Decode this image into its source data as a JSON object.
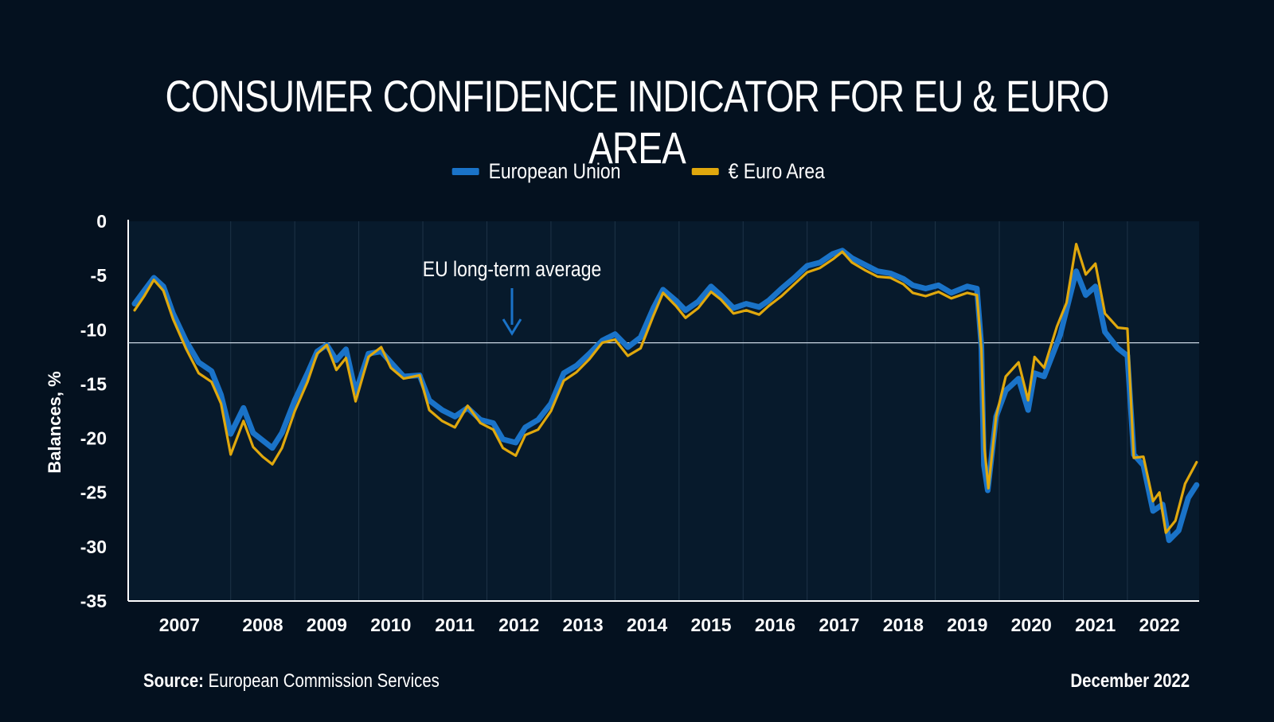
{
  "title": "CONSUMER CONFIDENCE INDICATOR FOR EU & EURO AREA",
  "footer": {
    "source_label": "Source:",
    "source_text": "European Commission Services",
    "date": "December 2022"
  },
  "colors": {
    "background": "#04111f",
    "plot_background": "#071a2c",
    "eu": "#1a73c8",
    "ea": "#e0a80d",
    "average_line": "#c9d6e3",
    "annotation_arrow": "#1a73c8"
  },
  "chart_data": {
    "type": "line",
    "ylabel": "Balances, %",
    "xlabel": "",
    "ylim": [
      -35,
      0
    ],
    "yticks": [
      0,
      -5,
      -10,
      -15,
      -20,
      -25,
      -30,
      -35
    ],
    "year_labels": [
      "2007",
      "2008",
      "2009",
      "2010",
      "2011",
      "2012",
      "2013",
      "2014",
      "2015",
      "2016",
      "2017",
      "2018",
      "2019",
      "2020",
      "2021",
      "2022"
    ],
    "legend_position": "top-center",
    "grid": "vertical-year-separators",
    "reference_line": {
      "value": -11.2,
      "label": "EU long-term average"
    },
    "series": [
      {
        "name": "European Union",
        "key": "eu",
        "points": [
          [
            2007.0,
            -7.6
          ],
          [
            2007.15,
            -6.4
          ],
          [
            2007.3,
            -5.2
          ],
          [
            2007.45,
            -6.0
          ],
          [
            2007.6,
            -8.5
          ],
          [
            2007.8,
            -11.0
          ],
          [
            2008.0,
            -13.0
          ],
          [
            2008.2,
            -13.8
          ],
          [
            2008.35,
            -16.0
          ],
          [
            2008.5,
            -19.6
          ],
          [
            2008.7,
            -17.2
          ],
          [
            2008.85,
            -19.5
          ],
          [
            2009.0,
            -20.2
          ],
          [
            2009.15,
            -20.9
          ],
          [
            2009.3,
            -19.5
          ],
          [
            2009.5,
            -16.5
          ],
          [
            2009.7,
            -14.0
          ],
          [
            2009.85,
            -12.0
          ],
          [
            2010.0,
            -11.4
          ],
          [
            2010.15,
            -12.8
          ],
          [
            2010.3,
            -11.8
          ],
          [
            2010.45,
            -15.8
          ],
          [
            2010.65,
            -12.2
          ],
          [
            2010.85,
            -12.0
          ],
          [
            2011.0,
            -13.0
          ],
          [
            2011.2,
            -14.3
          ],
          [
            2011.45,
            -14.2
          ],
          [
            2011.6,
            -16.5
          ],
          [
            2011.8,
            -17.4
          ],
          [
            2012.0,
            -18.0
          ],
          [
            2012.2,
            -17.2
          ],
          [
            2012.4,
            -18.3
          ],
          [
            2012.6,
            -18.6
          ],
          [
            2012.75,
            -20.1
          ],
          [
            2012.95,
            -20.4
          ],
          [
            2013.1,
            -19.0
          ],
          [
            2013.3,
            -18.3
          ],
          [
            2013.5,
            -16.8
          ],
          [
            2013.7,
            -14.0
          ],
          [
            2013.9,
            -13.3
          ],
          [
            2014.1,
            -12.2
          ],
          [
            2014.3,
            -11.0
          ],
          [
            2014.5,
            -10.4
          ],
          [
            2014.7,
            -11.6
          ],
          [
            2014.9,
            -10.7
          ],
          [
            2015.1,
            -8.0
          ],
          [
            2015.25,
            -6.3
          ],
          [
            2015.45,
            -7.3
          ],
          [
            2015.6,
            -8.2
          ],
          [
            2015.8,
            -7.4
          ],
          [
            2016.0,
            -6.0
          ],
          [
            2016.15,
            -6.8
          ],
          [
            2016.35,
            -8.0
          ],
          [
            2016.55,
            -7.6
          ],
          [
            2016.75,
            -7.9
          ],
          [
            2016.9,
            -7.3
          ],
          [
            2017.1,
            -6.2
          ],
          [
            2017.3,
            -5.2
          ],
          [
            2017.5,
            -4.1
          ],
          [
            2017.7,
            -3.8
          ],
          [
            2017.9,
            -3.0
          ],
          [
            2018.05,
            -2.7
          ],
          [
            2018.2,
            -3.4
          ],
          [
            2018.4,
            -4.0
          ],
          [
            2018.6,
            -4.6
          ],
          [
            2018.8,
            -4.8
          ],
          [
            2019.0,
            -5.3
          ],
          [
            2019.15,
            -5.9
          ],
          [
            2019.35,
            -6.2
          ],
          [
            2019.55,
            -5.9
          ],
          [
            2019.75,
            -6.6
          ],
          [
            2020.0,
            -6.0
          ],
          [
            2020.15,
            -6.2
          ],
          [
            2020.22,
            -11.5
          ],
          [
            2020.26,
            -22.5
          ],
          [
            2020.32,
            -24.8
          ],
          [
            2020.45,
            -18.0
          ],
          [
            2020.6,
            -15.6
          ],
          [
            2020.8,
            -14.5
          ],
          [
            2020.95,
            -17.4
          ],
          [
            2021.05,
            -14.0
          ],
          [
            2021.2,
            -14.3
          ],
          [
            2021.45,
            -10.5
          ],
          [
            2021.7,
            -4.6
          ],
          [
            2021.85,
            -6.8
          ],
          [
            2022.0,
            -6.0
          ],
          [
            2022.15,
            -10.2
          ],
          [
            2022.35,
            -11.7
          ],
          [
            2022.5,
            -12.4
          ],
          [
            2022.6,
            -21.5
          ],
          [
            2022.75,
            -22.5
          ],
          [
            2022.9,
            -26.7
          ],
          [
            2023.05,
            -26.1
          ],
          [
            2023.15,
            -29.4
          ],
          [
            2023.3,
            -28.5
          ],
          [
            2023.45,
            -25.5
          ],
          [
            2023.58,
            -24.3
          ]
        ]
      },
      {
        "name": "€ Euro Area",
        "key": "ea",
        "points": [
          [
            2007.0,
            -8.2
          ],
          [
            2007.15,
            -6.9
          ],
          [
            2007.3,
            -5.4
          ],
          [
            2007.45,
            -6.4
          ],
          [
            2007.6,
            -9.0
          ],
          [
            2007.8,
            -11.7
          ],
          [
            2008.0,
            -14.0
          ],
          [
            2008.2,
            -14.8
          ],
          [
            2008.35,
            -16.8
          ],
          [
            2008.5,
            -21.5
          ],
          [
            2008.7,
            -18.4
          ],
          [
            2008.85,
            -20.8
          ],
          [
            2009.0,
            -21.7
          ],
          [
            2009.15,
            -22.4
          ],
          [
            2009.3,
            -20.9
          ],
          [
            2009.5,
            -17.5
          ],
          [
            2009.7,
            -14.8
          ],
          [
            2009.85,
            -12.2
          ],
          [
            2010.0,
            -11.4
          ],
          [
            2010.15,
            -13.7
          ],
          [
            2010.3,
            -12.6
          ],
          [
            2010.45,
            -16.6
          ],
          [
            2010.65,
            -12.5
          ],
          [
            2010.85,
            -11.6
          ],
          [
            2011.0,
            -13.5
          ],
          [
            2011.2,
            -14.5
          ],
          [
            2011.45,
            -14.2
          ],
          [
            2011.6,
            -17.4
          ],
          [
            2011.8,
            -18.4
          ],
          [
            2012.0,
            -19.0
          ],
          [
            2012.2,
            -17.0
          ],
          [
            2012.4,
            -18.6
          ],
          [
            2012.6,
            -19.2
          ],
          [
            2012.75,
            -20.9
          ],
          [
            2012.95,
            -21.6
          ],
          [
            2013.1,
            -19.7
          ],
          [
            2013.3,
            -19.2
          ],
          [
            2013.5,
            -17.5
          ],
          [
            2013.7,
            -14.7
          ],
          [
            2013.9,
            -13.9
          ],
          [
            2014.1,
            -12.7
          ],
          [
            2014.3,
            -11.2
          ],
          [
            2014.5,
            -10.9
          ],
          [
            2014.7,
            -12.4
          ],
          [
            2014.9,
            -11.7
          ],
          [
            2015.1,
            -8.7
          ],
          [
            2015.25,
            -6.6
          ],
          [
            2015.45,
            -7.8
          ],
          [
            2015.6,
            -8.9
          ],
          [
            2015.8,
            -8.0
          ],
          [
            2016.0,
            -6.5
          ],
          [
            2016.15,
            -7.2
          ],
          [
            2016.35,
            -8.5
          ],
          [
            2016.55,
            -8.2
          ],
          [
            2016.75,
            -8.6
          ],
          [
            2016.9,
            -7.8
          ],
          [
            2017.1,
            -6.9
          ],
          [
            2017.3,
            -5.8
          ],
          [
            2017.5,
            -4.7
          ],
          [
            2017.7,
            -4.3
          ],
          [
            2017.9,
            -3.5
          ],
          [
            2018.05,
            -2.8
          ],
          [
            2018.2,
            -3.8
          ],
          [
            2018.4,
            -4.5
          ],
          [
            2018.6,
            -5.1
          ],
          [
            2018.8,
            -5.2
          ],
          [
            2019.0,
            -5.8
          ],
          [
            2019.15,
            -6.6
          ],
          [
            2019.35,
            -6.9
          ],
          [
            2019.55,
            -6.5
          ],
          [
            2019.75,
            -7.1
          ],
          [
            2020.0,
            -6.6
          ],
          [
            2020.15,
            -6.8
          ],
          [
            2020.22,
            -11.8
          ],
          [
            2020.27,
            -21.0
          ],
          [
            2020.33,
            -24.6
          ],
          [
            2020.45,
            -18.0
          ],
          [
            2020.6,
            -14.3
          ],
          [
            2020.8,
            -13.0
          ],
          [
            2020.95,
            -16.5
          ],
          [
            2021.05,
            -12.5
          ],
          [
            2021.2,
            -13.5
          ],
          [
            2021.4,
            -9.7
          ],
          [
            2021.55,
            -7.5
          ],
          [
            2021.7,
            -2.1
          ],
          [
            2021.85,
            -4.9
          ],
          [
            2022.0,
            -3.9
          ],
          [
            2022.15,
            -8.5
          ],
          [
            2022.35,
            -9.8
          ],
          [
            2022.5,
            -9.9
          ],
          [
            2022.6,
            -21.8
          ],
          [
            2022.75,
            -21.7
          ],
          [
            2022.9,
            -25.8
          ],
          [
            2023.0,
            -25.0
          ],
          [
            2023.1,
            -28.7
          ],
          [
            2023.25,
            -27.6
          ],
          [
            2023.4,
            -24.2
          ],
          [
            2023.58,
            -22.2
          ]
        ]
      }
    ]
  }
}
